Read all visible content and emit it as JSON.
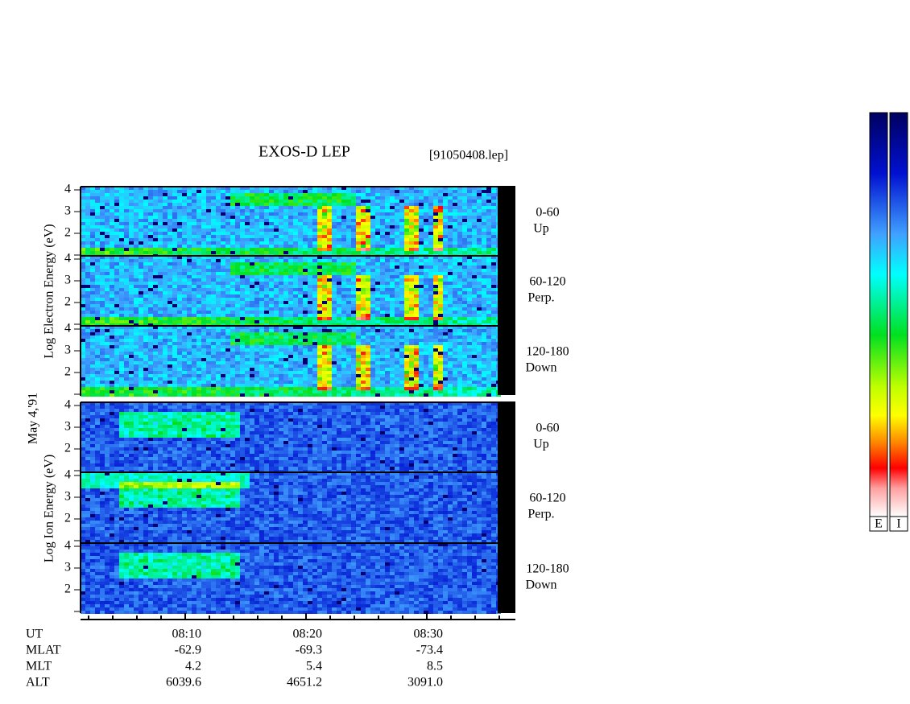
{
  "header": {
    "title": "EXOS-D LEP",
    "file": "[91050408.lep]"
  },
  "date": "May 4,'91",
  "groups": [
    {
      "axis_label": "Log  Electron  Energy (eV)",
      "panels": [
        {
          "range": "0-60",
          "direction": "Up"
        },
        {
          "range": "60-120",
          "direction": "Perp."
        },
        {
          "range": "120-180",
          "direction": "Down"
        }
      ]
    },
    {
      "axis_label": "Log  Ion  Energy (eV)",
      "panels": [
        {
          "range": "0-60",
          "direction": "Up"
        },
        {
          "range": "60-120",
          "direction": "Perp."
        },
        {
          "range": "120-180",
          "direction": "Down"
        }
      ]
    }
  ],
  "energy_ticks": [
    "4",
    "3",
    "2"
  ],
  "orbit": {
    "rows": [
      {
        "label": "UT",
        "values": [
          "08:10",
          "08:20",
          "08:30"
        ]
      },
      {
        "label": "MLAT",
        "values": [
          "-62.9",
          "-69.3",
          "-73.4"
        ]
      },
      {
        "label": "MLT",
        "values": [
          "4.2",
          "5.4",
          "8.5"
        ]
      },
      {
        "label": "ALT",
        "values": [
          "6039.6",
          "4651.2",
          "3091.0"
        ]
      }
    ]
  },
  "colorbar": {
    "labels": [
      "E",
      "I"
    ]
  }
}
